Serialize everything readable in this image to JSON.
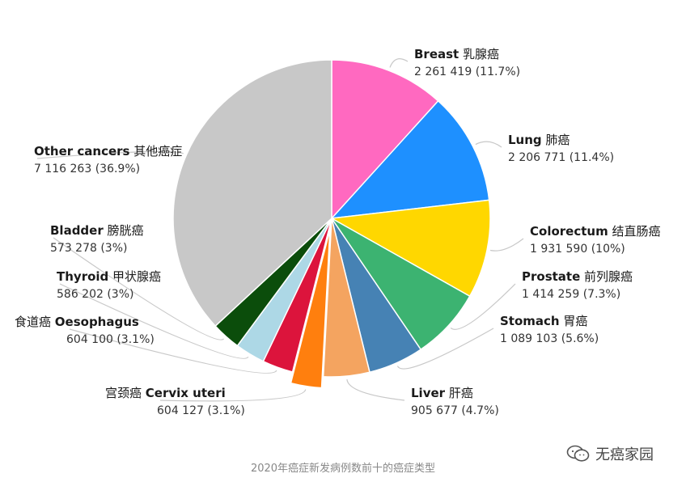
{
  "chart_data": {
    "type": "pie",
    "title": "",
    "slices": [
      {
        "name": "Breast",
        "zh": "乳腺癌",
        "value": 2261419,
        "value_text": "2 261 419 (11.7%)",
        "percent": 11.7,
        "color": "#ff69c0"
      },
      {
        "name": "Lung",
        "zh": "肺癌",
        "value": 2206771,
        "value_text": "2 206 771 (11.4%)",
        "percent": 11.4,
        "color": "#1e90ff"
      },
      {
        "name": "Colorectum",
        "zh": "结直肠癌",
        "value": 1931590,
        "value_text": "1 931 590 (10%)",
        "percent": 10,
        "color": "#ffd700"
      },
      {
        "name": "Prostate",
        "zh": "前列腺癌",
        "value": 1414259,
        "value_text": "1 414 259 (7.3%)",
        "percent": 7.3,
        "color": "#3cb371"
      },
      {
        "name": "Stomach",
        "zh": "胃癌",
        "value": 1089103,
        "value_text": "1 089 103 (5.6%)",
        "percent": 5.6,
        "color": "#4682b4"
      },
      {
        "name": "Liver",
        "zh": "肝癌",
        "value": 905677,
        "value_text": "905 677 (4.7%)",
        "percent": 4.7,
        "color": "#f4a460"
      },
      {
        "name": "Cervix uteri",
        "zh": "宫颈癌",
        "value": 604127,
        "value_text": "604 127 (3.1%)",
        "percent": 3.1,
        "color": "#ff7f0e",
        "exploded": true
      },
      {
        "name": "Oesophagus",
        "zh": "食道癌",
        "value": 604100,
        "value_text": "604 100 (3.1%)",
        "percent": 3.1,
        "color": "#dc143c"
      },
      {
        "name": "Thyroid",
        "zh": "甲状腺癌",
        "value": 586202,
        "value_text": "586 202 (3%)",
        "percent": 3,
        "color": "#add8e6"
      },
      {
        "name": "Bladder",
        "zh": "膀胱癌",
        "value": 573278,
        "value_text": "573 278 (3%)",
        "percent": 3,
        "color": "#0b4d0b"
      },
      {
        "name": "Other cancers",
        "zh": "其他癌症",
        "value": 7116263,
        "value_text": "7 116 263 (36.9%)",
        "percent": 36.9,
        "color": "#c8c8c8"
      }
    ]
  },
  "caption": "2020年癌症新发病例数前十的癌症类型",
  "watermark": "无癌家园"
}
